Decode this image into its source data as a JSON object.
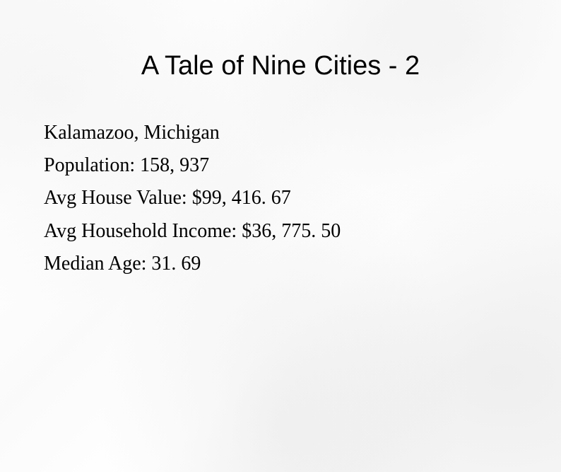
{
  "slide": {
    "title": "A Tale of Nine Cities - 2",
    "title_font": "Arial",
    "title_fontsize": 38,
    "title_weight": 400,
    "title_color": "#000000",
    "body_font": "Times New Roman",
    "body_fontsize": 28,
    "body_color": "#000000",
    "background_color": "#ffffff",
    "lines": [
      {
        "label": "Kalamazoo, Michigan"
      },
      {
        "label": "Population: 158, 937"
      },
      {
        "label": "Avg House Value: $99, 416. 67"
      },
      {
        "label": "Avg Household Income: $36, 775. 50"
      },
      {
        "label": "Median Age: 31. 69"
      }
    ]
  }
}
